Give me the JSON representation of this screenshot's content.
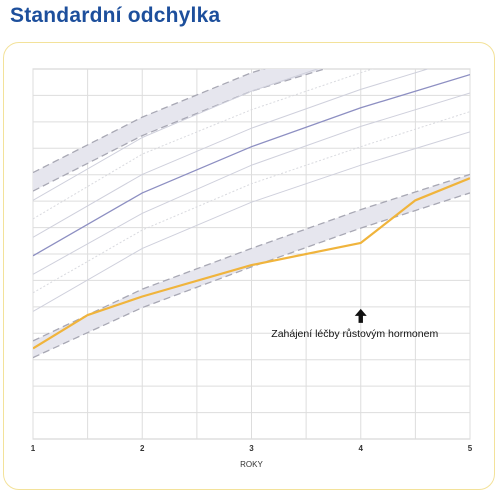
{
  "page": {
    "title": "Standardní odchylka"
  },
  "chart_data": {
    "type": "line",
    "title": "Standardní odchylka",
    "xlabel": "ROKY",
    "ylabel": "",
    "xlim": [
      1,
      5
    ],
    "ylim": [
      0,
      1
    ],
    "x_ticks": [
      1,
      2,
      3,
      4,
      5
    ],
    "x_grid": [
      1,
      1.5,
      2,
      2.5,
      3,
      3.5,
      4,
      4.5,
      5
    ],
    "y_gridlines": 14,
    "grid": true,
    "legend": "none",
    "annotation": {
      "text": "Zahájení léčby růstovým hormonem",
      "x": 4,
      "y": 0.33
    },
    "bands": [
      {
        "lower": [
          [
            1,
            0.22
          ],
          [
            2,
            0.355
          ],
          [
            3,
            0.465
          ],
          [
            4,
            0.57
          ],
          [
            5,
            0.665
          ]
        ],
        "upper": [
          [
            1,
            0.265
          ],
          [
            2,
            0.405
          ],
          [
            3,
            0.515
          ],
          [
            4,
            0.62
          ],
          [
            5,
            0.715
          ]
        ],
        "color": "#e6e6ee"
      },
      {
        "lower": [
          [
            1,
            0.67
          ],
          [
            2,
            0.82
          ],
          [
            3,
            0.94
          ],
          [
            4,
            1.03
          ],
          [
            5,
            1.11
          ]
        ],
        "upper": [
          [
            1,
            0.72
          ],
          [
            2,
            0.87
          ],
          [
            3,
            0.99
          ],
          [
            4,
            1.08
          ],
          [
            5,
            1.17
          ]
        ],
        "color": "#e6e6ee"
      }
    ],
    "reference_lines": [
      {
        "points": [
          [
            1,
            0.345
          ],
          [
            2,
            0.515
          ],
          [
            3,
            0.64
          ],
          [
            4,
            0.74
          ],
          [
            5,
            0.83
          ]
        ],
        "color": "#cfd0dc",
        "style": "solid"
      },
      {
        "points": [
          [
            1,
            0.395
          ],
          [
            2,
            0.565
          ],
          [
            3,
            0.69
          ],
          [
            4,
            0.79
          ],
          [
            5,
            0.885
          ]
        ],
        "color": "#d9dadf",
        "style": "dotted"
      },
      {
        "points": [
          [
            1,
            0.445
          ],
          [
            2,
            0.61
          ],
          [
            3,
            0.74
          ],
          [
            4,
            0.845
          ],
          [
            5,
            0.935
          ]
        ],
        "color": "#cfd0dc",
        "style": "solid"
      },
      {
        "points": [
          [
            1,
            0.495
          ],
          [
            2,
            0.665
          ],
          [
            3,
            0.79
          ],
          [
            4,
            0.895
          ],
          [
            5,
            0.985
          ]
        ],
        "color": "#8d8fc2",
        "style": "solid"
      },
      {
        "points": [
          [
            1,
            0.545
          ],
          [
            2,
            0.715
          ],
          [
            3,
            0.84
          ],
          [
            4,
            0.945
          ],
          [
            5,
            1.035
          ]
        ],
        "color": "#cfd0dc",
        "style": "solid"
      },
      {
        "points": [
          [
            1,
            0.595
          ],
          [
            2,
            0.77
          ],
          [
            3,
            0.89
          ],
          [
            4,
            0.99
          ],
          [
            5,
            1.085
          ]
        ],
        "color": "#d9dadf",
        "style": "dotted"
      },
      {
        "points": [
          [
            1,
            0.645
          ],
          [
            2,
            0.815
          ],
          [
            3,
            0.94
          ],
          [
            4,
            1.04
          ],
          [
            5,
            1.135
          ]
        ],
        "color": "#cfd0dc",
        "style": "solid"
      }
    ],
    "series": [
      {
        "x": [
          1,
          1.5,
          2,
          3,
          4,
          4.5,
          5
        ],
        "values": [
          0.245,
          0.335,
          0.385,
          0.47,
          0.53,
          0.645,
          0.705
        ],
        "color": "#f0b43c"
      }
    ],
    "colors": {
      "highlight": "#f0b43c",
      "median": "#8d8fc2",
      "grid": "#dddddd",
      "band": "#e6e6ee"
    }
  }
}
